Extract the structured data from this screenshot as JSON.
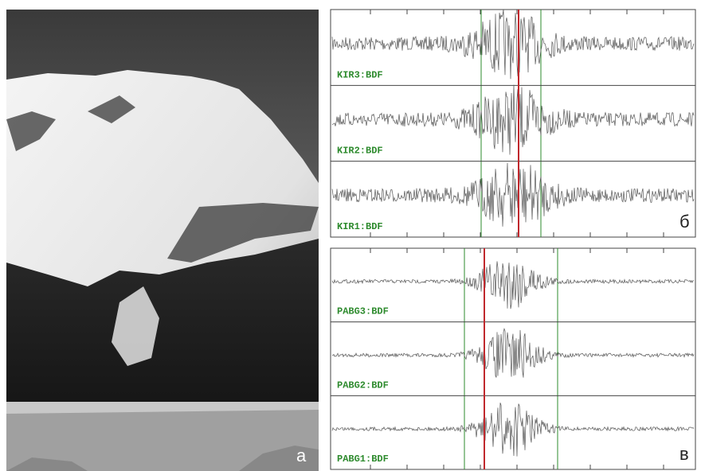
{
  "photo": {
    "label": "а"
  },
  "panels": [
    {
      "label": "б",
      "traces": [
        "KIR3:BDF",
        "KIR2:BDF",
        "KIR1:BDF"
      ]
    },
    {
      "label": "в",
      "traces": [
        "PABG3:BDF",
        "PABG2:BDF",
        "PABG1:BDF"
      ]
    }
  ]
}
